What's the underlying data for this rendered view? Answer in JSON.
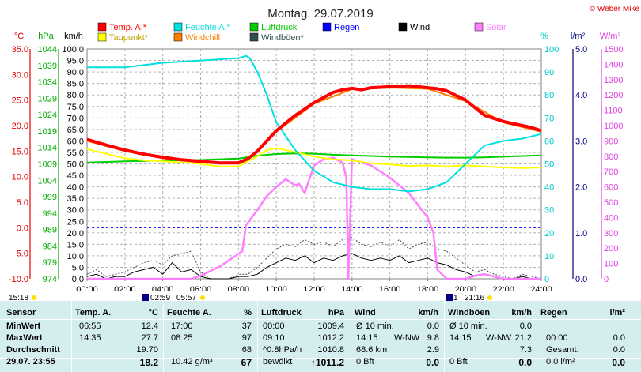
{
  "chart_data": {
    "type": "line",
    "title": "Montag, 29.07.2019",
    "copyright": "© Weber Mike",
    "x_tick_labels": [
      "00:00",
      "02:00",
      "04:00",
      "06:00",
      "08:00",
      "10:00",
      "12:00",
      "14:00",
      "16:00",
      "18:00",
      "20:00",
      "22:00",
      "24:00"
    ],
    "x_range_hours": [
      0,
      24
    ],
    "axes": {
      "temp": {
        "unit": "°C",
        "range": [
          -10,
          35
        ],
        "ticks": [
          "35.0",
          "30.0",
          "25.0",
          "20.0",
          "15.0",
          "10.0",
          "5.0",
          "0.0",
          "-5.0",
          "-10.0"
        ],
        "color": "#e60000"
      },
      "pressure": {
        "unit": "hPa",
        "range": [
          974,
          1044
        ],
        "ticks": [
          "1044",
          "1039",
          "1034",
          "1029",
          "1024",
          "1019",
          "1014",
          "1009",
          "1004",
          "999",
          "994",
          "989",
          "984",
          "979",
          "974"
        ],
        "color": "#00aa00"
      },
      "wind": {
        "unit": "km/h",
        "range": [
          0,
          100
        ],
        "ticks": [
          "100.0",
          "95.0",
          "90.0",
          "85.0",
          "80.0",
          "75.0",
          "70.0",
          "65.0",
          "60.0",
          "55.0",
          "50.0",
          "45.0",
          "40.0",
          "35.0",
          "30.0",
          "25.0",
          "20.0",
          "15.0",
          "10.0",
          "5.0",
          "0.0"
        ],
        "color": "#000000"
      },
      "humidity": {
        "unit": "%",
        "range": [
          0,
          100
        ],
        "ticks": [
          "100",
          "90",
          "80",
          "70",
          "60",
          "50",
          "40",
          "30",
          "20",
          "10",
          "0"
        ],
        "color": "#00c8c8"
      },
      "rain": {
        "unit": "l/m²",
        "range": [
          0,
          5
        ],
        "ticks": [
          "5.0",
          "4.0",
          "3.0",
          "2.0",
          "1.0",
          "0.0"
        ],
        "color": "#000080"
      },
      "solar": {
        "unit": "W/m²",
        "range": [
          0,
          1500
        ],
        "ticks": [
          "1500",
          "1400",
          "1300",
          "1200",
          "1100",
          "1000",
          "900",
          "800",
          "700",
          "600",
          "500",
          "400",
          "300",
          "200",
          "100",
          "0"
        ],
        "color": "#e040e0"
      }
    },
    "grid": true,
    "legend_position": "top",
    "legend": [
      {
        "label": "Temp. A.*",
        "color": "#ff0000"
      },
      {
        "label": "Feuchte A.*",
        "color": "#00e0e0"
      },
      {
        "label": "Luftdruck",
        "color": "#00cc00"
      },
      {
        "label": "Regen",
        "color": "#0000ff"
      },
      {
        "label": "Wind",
        "color": "#000000"
      },
      {
        "label": "Solar",
        "color": "#ff80ff"
      },
      {
        "label": "Taupunkt*",
        "color": "#ffff00"
      },
      {
        "label": "Windchill",
        "color": "#ff8000"
      },
      {
        "label": "Windböen*",
        "color": "#305050"
      }
    ],
    "series": [
      {
        "name": "Temp. A.*",
        "axis": "temp",
        "color": "#ff0000",
        "x": [
          0,
          1,
          2,
          3,
          4,
          5,
          6,
          7,
          8,
          8.5,
          9,
          9.5,
          10,
          11,
          12,
          13,
          13.5,
          14,
          14.5,
          15,
          16,
          17,
          17.5,
          18,
          18.5,
          19,
          20,
          21,
          22,
          23,
          23.5,
          24
        ],
        "y": [
          17.3,
          16.2,
          15.2,
          14.4,
          13.8,
          13.3,
          13.0,
          12.7,
          12.7,
          13.5,
          15.0,
          17.0,
          19.0,
          22.0,
          24.5,
          26.5,
          27.0,
          27.3,
          27.0,
          27.4,
          27.6,
          27.8,
          27.6,
          27.4,
          27.2,
          26.8,
          25.0,
          22.0,
          20.8,
          20.0,
          19.6,
          19.0
        ]
      },
      {
        "name": "Windchill",
        "axis": "temp",
        "color": "#ff8000",
        "x": [
          0,
          2,
          4,
          6,
          8,
          9,
          10,
          12,
          14,
          16,
          18,
          20,
          22,
          24
        ],
        "y": [
          17.0,
          15.0,
          13.6,
          12.8,
          12.6,
          14.8,
          18.8,
          24.3,
          27.1,
          27.4,
          27.2,
          24.8,
          20.6,
          18.8
        ]
      },
      {
        "name": "Taupunkt*",
        "axis": "temp",
        "color": "#ffff00",
        "x": [
          0,
          1,
          2,
          3,
          4,
          5,
          6,
          7,
          8,
          9,
          9.5,
          10,
          11,
          12,
          13,
          14,
          15,
          16,
          17,
          18,
          19,
          20,
          21,
          22,
          23,
          24
        ],
        "y": [
          15.4,
          14.5,
          13.6,
          13.2,
          13.0,
          12.8,
          12.5,
          12.0,
          12.0,
          14.0,
          15.2,
          15.6,
          14.8,
          13.9,
          13.4,
          13.2,
          12.6,
          12.4,
          12.1,
          12.2,
          12.0,
          12.2,
          12.0,
          11.8,
          11.7,
          11.8
        ]
      },
      {
        "name": "Luftdruck",
        "axis": "pressure",
        "color": "#00cc00",
        "x": [
          0,
          2,
          4,
          6,
          8,
          9,
          10,
          11,
          12,
          13,
          14,
          15,
          16,
          17,
          18,
          19,
          20,
          21,
          22,
          23,
          24
        ],
        "y": [
          1009.4,
          1009.8,
          1010.0,
          1010.2,
          1010.6,
          1011.5,
          1012.0,
          1012.2,
          1012.1,
          1011.8,
          1011.6,
          1011.4,
          1011.2,
          1011.1,
          1011.0,
          1010.9,
          1010.9,
          1011.0,
          1011.2,
          1011.4,
          1011.6
        ]
      },
      {
        "name": "Feuchte A.*",
        "axis": "humidity",
        "color": "#00e0e0",
        "x": [
          0,
          1,
          2,
          3,
          4,
          5,
          6,
          7,
          8,
          8.4,
          8.6,
          9,
          9.5,
          10,
          11,
          12,
          13,
          14,
          15,
          16,
          17,
          18,
          19,
          20,
          21,
          22,
          23,
          24
        ],
        "y": [
          92,
          92,
          92,
          93,
          94,
          94.5,
          95,
          95.5,
          96,
          97,
          96,
          90,
          80,
          68,
          56,
          47,
          42,
          40,
          39,
          39,
          38,
          39,
          42,
          50,
          58,
          60,
          61,
          63
        ]
      },
      {
        "name": "Solar",
        "axis": "solar",
        "color": "#ff80ff",
        "x": [
          0,
          5.5,
          6,
          7,
          7.5,
          8.2,
          8.4,
          9,
          9.5,
          10,
          10.5,
          11,
          11.2,
          11.5,
          12,
          12.5,
          13,
          13.5,
          13.7,
          13.8,
          14,
          14.5,
          15,
          16,
          17,
          18,
          18.3,
          18.5,
          19,
          20,
          20.5,
          21,
          22,
          24
        ],
        "y": [
          0,
          0,
          20,
          80,
          120,
          180,
          350,
          450,
          540,
          600,
          650,
          610,
          620,
          560,
          740,
          780,
          790,
          760,
          660,
          0,
          780,
          760,
          740,
          660,
          560,
          400,
          300,
          60,
          0,
          0,
          20,
          30,
          0,
          0
        ]
      },
      {
        "name": "Wind",
        "axis": "wind",
        "color": "#000000",
        "x": [
          0,
          0.5,
          1,
          1.5,
          2,
          2.5,
          3,
          3.5,
          4,
          4.5,
          5,
          5.5,
          6,
          6.5,
          7,
          7.5,
          8,
          8.5,
          9,
          9.5,
          10,
          10.5,
          11,
          11.5,
          12,
          12.5,
          13,
          13.5,
          14,
          14.5,
          15,
          15.5,
          16,
          16.5,
          17,
          17.5,
          18,
          18.5,
          19,
          19.5,
          20,
          20.5,
          21,
          21.5,
          22,
          22.5,
          23,
          23.5,
          24
        ],
        "y": [
          1,
          2,
          0,
          1,
          1,
          3,
          4,
          5,
          2,
          7,
          3,
          4,
          1,
          0,
          0,
          0,
          1,
          1,
          2,
          5,
          7,
          9,
          8,
          10,
          7,
          9,
          8,
          10,
          11,
          9,
          8,
          9,
          8,
          10,
          7,
          8,
          9,
          7,
          6,
          4,
          3,
          1,
          2,
          1,
          0,
          0,
          1,
          0,
          0
        ]
      },
      {
        "name": "Windböen*",
        "axis": "wind",
        "color": "#305050",
        "x": [
          0,
          0.5,
          1,
          1.5,
          2,
          2.5,
          3,
          3.5,
          4,
          4.5,
          5,
          5.5,
          6,
          6.5,
          7,
          7.5,
          8,
          8.5,
          9,
          9.5,
          10,
          10.5,
          11,
          11.5,
          12,
          12.5,
          13,
          13.5,
          14,
          14.5,
          15,
          15.5,
          16,
          16.5,
          17,
          17.5,
          18,
          18.5,
          19,
          19.5,
          20,
          20.5,
          21,
          21.5,
          22,
          22.5,
          23,
          23.5,
          24
        ],
        "y": [
          2,
          4,
          1,
          2,
          3,
          5,
          7,
          8,
          6,
          10,
          11,
          12,
          3,
          0,
          0,
          0,
          2,
          2,
          5,
          9,
          13,
          15,
          14,
          17,
          15,
          16,
          14,
          17,
          18,
          15,
          14,
          16,
          14,
          17,
          13,
          15,
          16,
          13,
          12,
          9,
          6,
          3,
          4,
          2,
          1,
          0,
          2,
          1,
          0
        ]
      }
    ]
  },
  "time_bar": {
    "left_label": "15:18",
    "sunrise": "02:59",
    "sunset": "05:57",
    "moon_label": "1",
    "moon_time": "21:16"
  },
  "summary": {
    "headers": {
      "sensor": "Sensor",
      "temp": "Temp. A.",
      "temp_unit": "°C",
      "hum": "Feuchte A.",
      "hum_unit": "%",
      "press": "Luftdruck",
      "press_unit": "hPa",
      "wind": "Wind",
      "wind_unit": "km/h",
      "gust": "Windböen",
      "gust_unit": "km/h",
      "rain": "Regen",
      "rain_unit": "l/m²"
    },
    "rows": [
      {
        "label": "MinWert",
        "temp_time": "06:55",
        "temp_val": "12.4",
        "hum_time": "17:00",
        "hum_val": "37",
        "press_time": "00:00",
        "press_val": "1009.4",
        "wind_a": "Ø 10 min.",
        "wind_b": "",
        "wind_val": "0.0",
        "gust_a": "Ø 10 min.",
        "gust_b": "",
        "gust_val": "0.0",
        "rain_a": "",
        "rain_val": ""
      },
      {
        "label": "MaxWert",
        "temp_time": "14:35",
        "temp_val": "27.7",
        "hum_time": "08:25",
        "hum_val": "97",
        "press_time": "09:10",
        "press_val": "1012.2",
        "wind_a": "14:15",
        "wind_b": "W-NW",
        "wind_val": "9.8",
        "gust_a": "14:15",
        "gust_b": "W-NW",
        "gust_val": "21.2",
        "rain_a": "00:00",
        "rain_val": "0.0"
      },
      {
        "label": "Durchschnitt",
        "temp_time": "",
        "temp_val": "19.70",
        "hum_time": "",
        "hum_val": "68",
        "press_time": "^0.8hPa/h",
        "press_val": "1010.8",
        "wind_a": "68.6 km",
        "wind_b": "",
        "wind_val": "2.9",
        "gust_a": "",
        "gust_b": "",
        "gust_val": "7.3",
        "rain_a": "Gesamt:",
        "rain_val": "0.0"
      },
      {
        "label": "29.07. 23:55",
        "temp_time": "",
        "temp_val": "18.2",
        "hum_time": "10.42 g/m³",
        "hum_val": "67",
        "press_time": "bewölkt",
        "press_val": "↑1011.2",
        "wind_a": "0 Bft",
        "wind_b": "",
        "wind_val": "0.0",
        "gust_a": "0 Bft",
        "gust_b": "",
        "gust_val": "0.0",
        "rain_a": "0.0 l/m²",
        "rain_val": "0.0"
      }
    ]
  }
}
